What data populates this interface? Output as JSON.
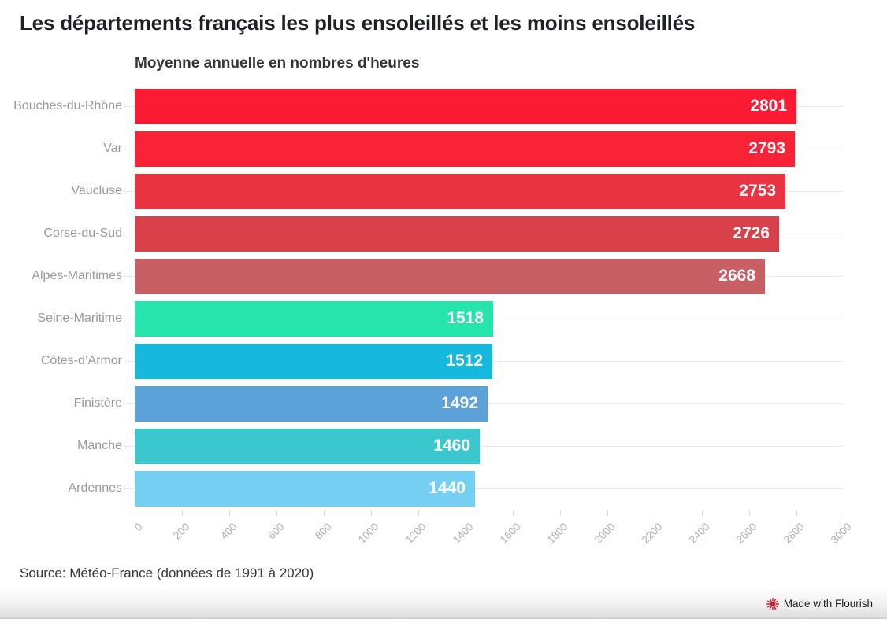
{
  "title": "Les départements français les plus ensoleillés et les moins ensoleillés",
  "subtitle": "Moyenne annuelle en nombres d'heures",
  "source": "Source: Météo-France (données de 1991 à 2020)",
  "footer": {
    "credit": "Made with Flourish",
    "icon": "flourish-starburst-icon",
    "icon_color": "#c41a2e"
  },
  "chart_data": {
    "type": "bar",
    "orientation": "horizontal",
    "title": "Les départements français les plus ensoleillés et les moins ensoleillés",
    "subtitle": "Moyenne annuelle en nombres d'heures",
    "categories": [
      "Bouches-du-Rhône",
      "Var",
      "Vaucluse",
      "Corse-du-Sud",
      "Alpes-Maritimes",
      "Seine-Maritime",
      "Côtes-d’Armor",
      "Finistère",
      "Manche",
      "Ardennes"
    ],
    "values": [
      2801,
      2793,
      2753,
      2726,
      2668,
      1518,
      1512,
      1492,
      1460,
      1440
    ],
    "bar_colors": [
      "#fb1c33",
      "#fa2237",
      "#eb3441",
      "#d8404a",
      "#c75f64",
      "#27e3ac",
      "#16b8db",
      "#5ba2d8",
      "#3bc7ce",
      "#74cff3"
    ],
    "xlim": [
      0,
      3000
    ],
    "x_ticks": [
      0,
      200,
      400,
      600,
      800,
      1000,
      1200,
      1400,
      1600,
      1800,
      2000,
      2200,
      2400,
      2600,
      2800,
      3000
    ],
    "value_label_position": "inside-end",
    "value_label_color": "#ffffff",
    "category_label_color": "#98999e",
    "axis_label_color": "#b1b1b1",
    "grid": "horizontal row rules behind bars",
    "legend": "none"
  }
}
